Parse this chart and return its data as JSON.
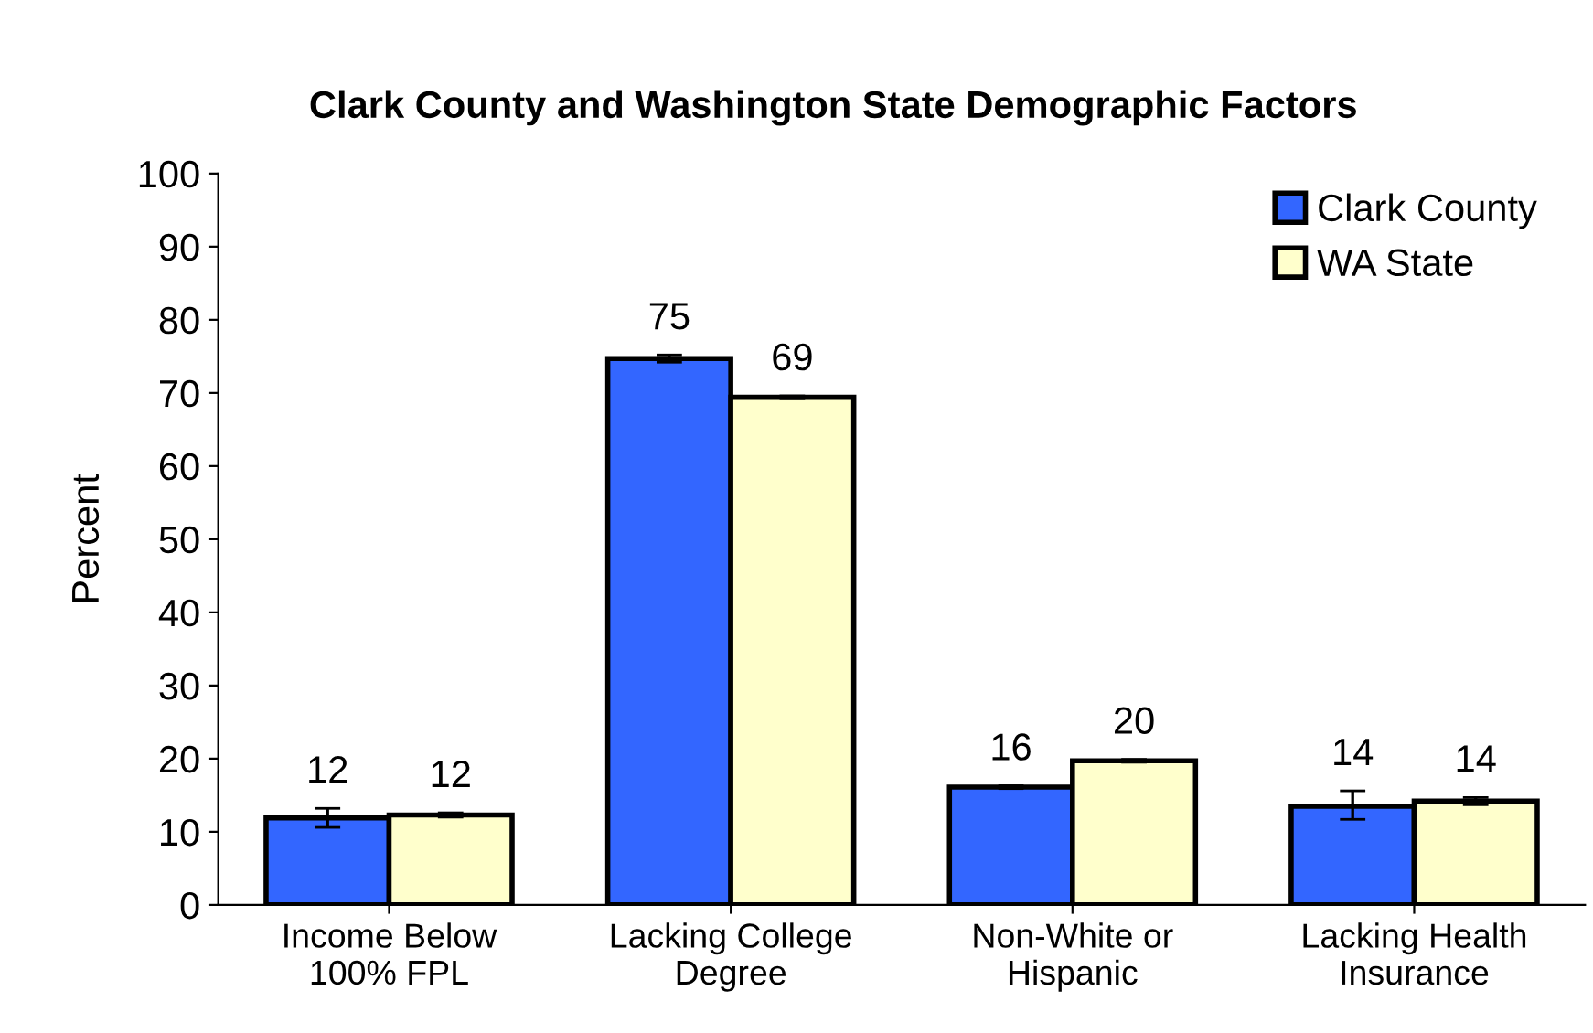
{
  "chart_data": {
    "type": "bar",
    "title": "Clark County and Washington State Demographic Factors",
    "ylabel": "Percent",
    "categories": [
      "Income Below\n100% FPL",
      "Lacking College\nDegree",
      "Non-White or\nHispanic",
      "Lacking Health\nInsurance"
    ],
    "series": [
      {
        "name": "Clark County",
        "color": "#3366ff",
        "values": [
          11.9,
          74.7,
          16.1,
          13.5
        ],
        "errors": [
          [
            10.6,
            13.2
          ],
          [
            74.2,
            75.2
          ],
          [
            15.9,
            16.3
          ],
          [
            11.7,
            15.6
          ]
        ],
        "value_labels": [
          "12",
          "75",
          "16",
          "14"
        ]
      },
      {
        "name": "WA State",
        "color": "#ffffcc",
        "values": [
          12.3,
          69.4,
          19.7,
          14.2
        ],
        "errors": [
          [
            12.0,
            12.6
          ],
          [
            69.2,
            69.6
          ],
          [
            19.5,
            19.9
          ],
          [
            13.7,
            14.7
          ]
        ],
        "value_labels": [
          "12",
          "69",
          "20",
          "14"
        ]
      }
    ],
    "ylim": [
      0,
      100
    ],
    "yticks": [
      0,
      10,
      20,
      30,
      40,
      50,
      60,
      70,
      80,
      90,
      100
    ],
    "grid": false,
    "legend": "top right"
  }
}
